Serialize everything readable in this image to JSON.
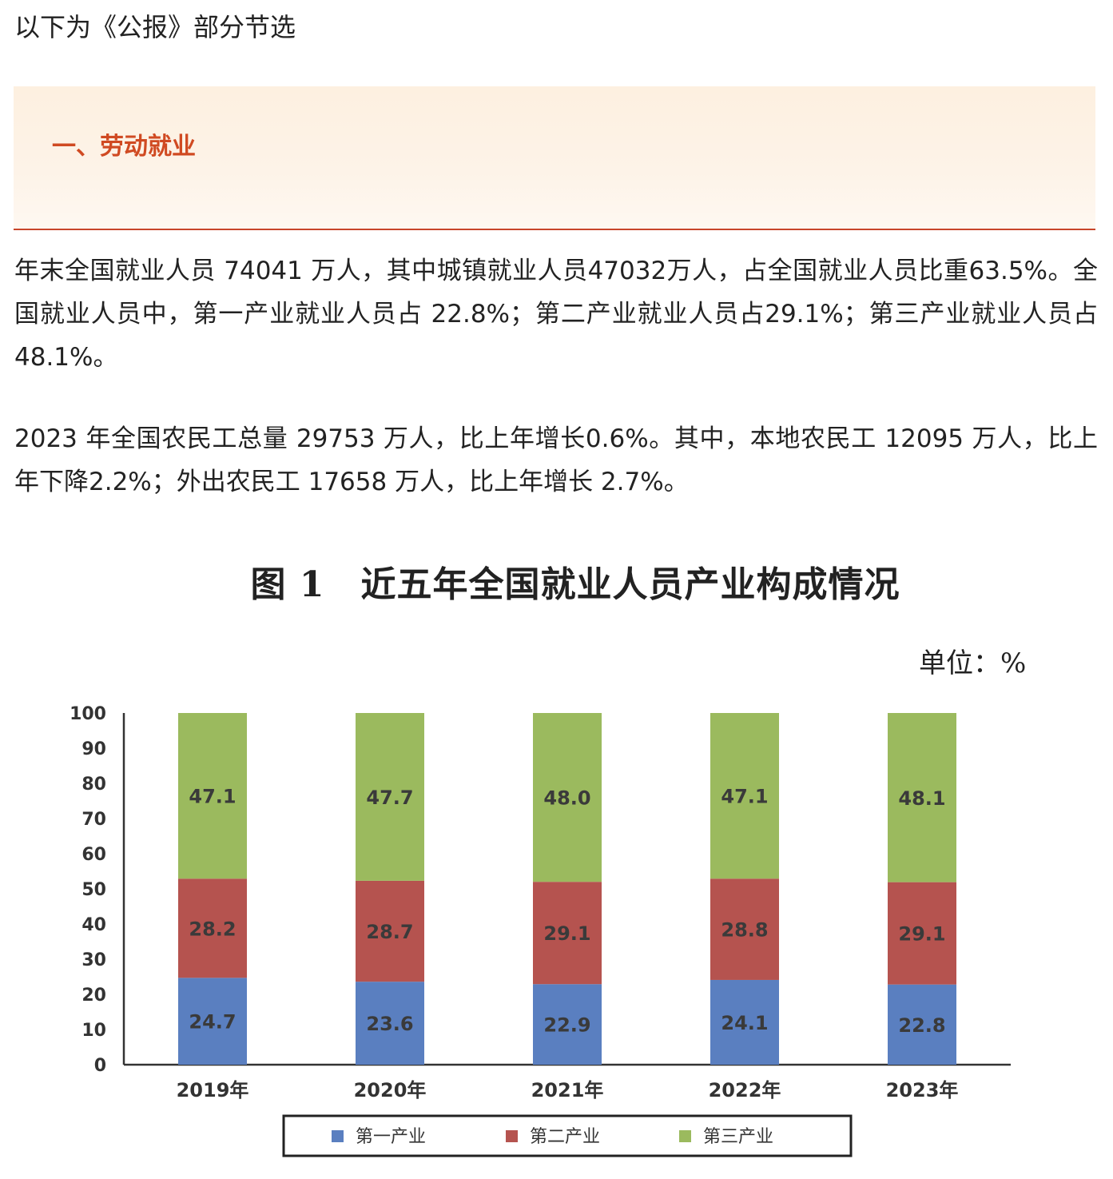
{
  "intro": "以下为《公报》部分节选",
  "section": {
    "title": "一、劳动就业"
  },
  "paragraphs": [
    "年末全国就业人员 74041 万人，其中城镇就业人员47032万人，占全国就业人员比重63.5%。全国就业人员中，第一产业就业人员占 22.8%；第二产业就业人员占29.1%；第三产业就业人员占 48.1%。",
    "2023 年全国农民工总量 29753 万人，比上年增长0.6%。其中，本地农民工 12095 万人，比上年下降2.2%；外出农民工 17658 万人，比上年增长 2.7%。"
  ],
  "figure": {
    "title": "图 1　近五年全国就业人员产业构成情况",
    "unit": "单位：%"
  },
  "colors": {
    "primary": "#5a7fc0",
    "secondary": "#b5534f",
    "tertiary": "#9bba5e"
  },
  "chart_data": {
    "type": "bar",
    "stacked": true,
    "categories": [
      "2019年",
      "2020年",
      "2021年",
      "2022年",
      "2023年"
    ],
    "series": [
      {
        "name": "第一产业",
        "values": [
          24.7,
          23.6,
          22.9,
          24.1,
          22.8
        ]
      },
      {
        "name": "第二产业",
        "values": [
          28.2,
          28.7,
          29.1,
          28.8,
          29.1
        ]
      },
      {
        "name": "第三产业",
        "values": [
          47.1,
          47.7,
          48.0,
          47.1,
          48.1
        ]
      }
    ],
    "ylim": [
      0,
      100
    ],
    "yticks": [
      0,
      10,
      20,
      30,
      40,
      50,
      60,
      70,
      80,
      90,
      100
    ],
    "legend": "bottom",
    "grid": false
  }
}
